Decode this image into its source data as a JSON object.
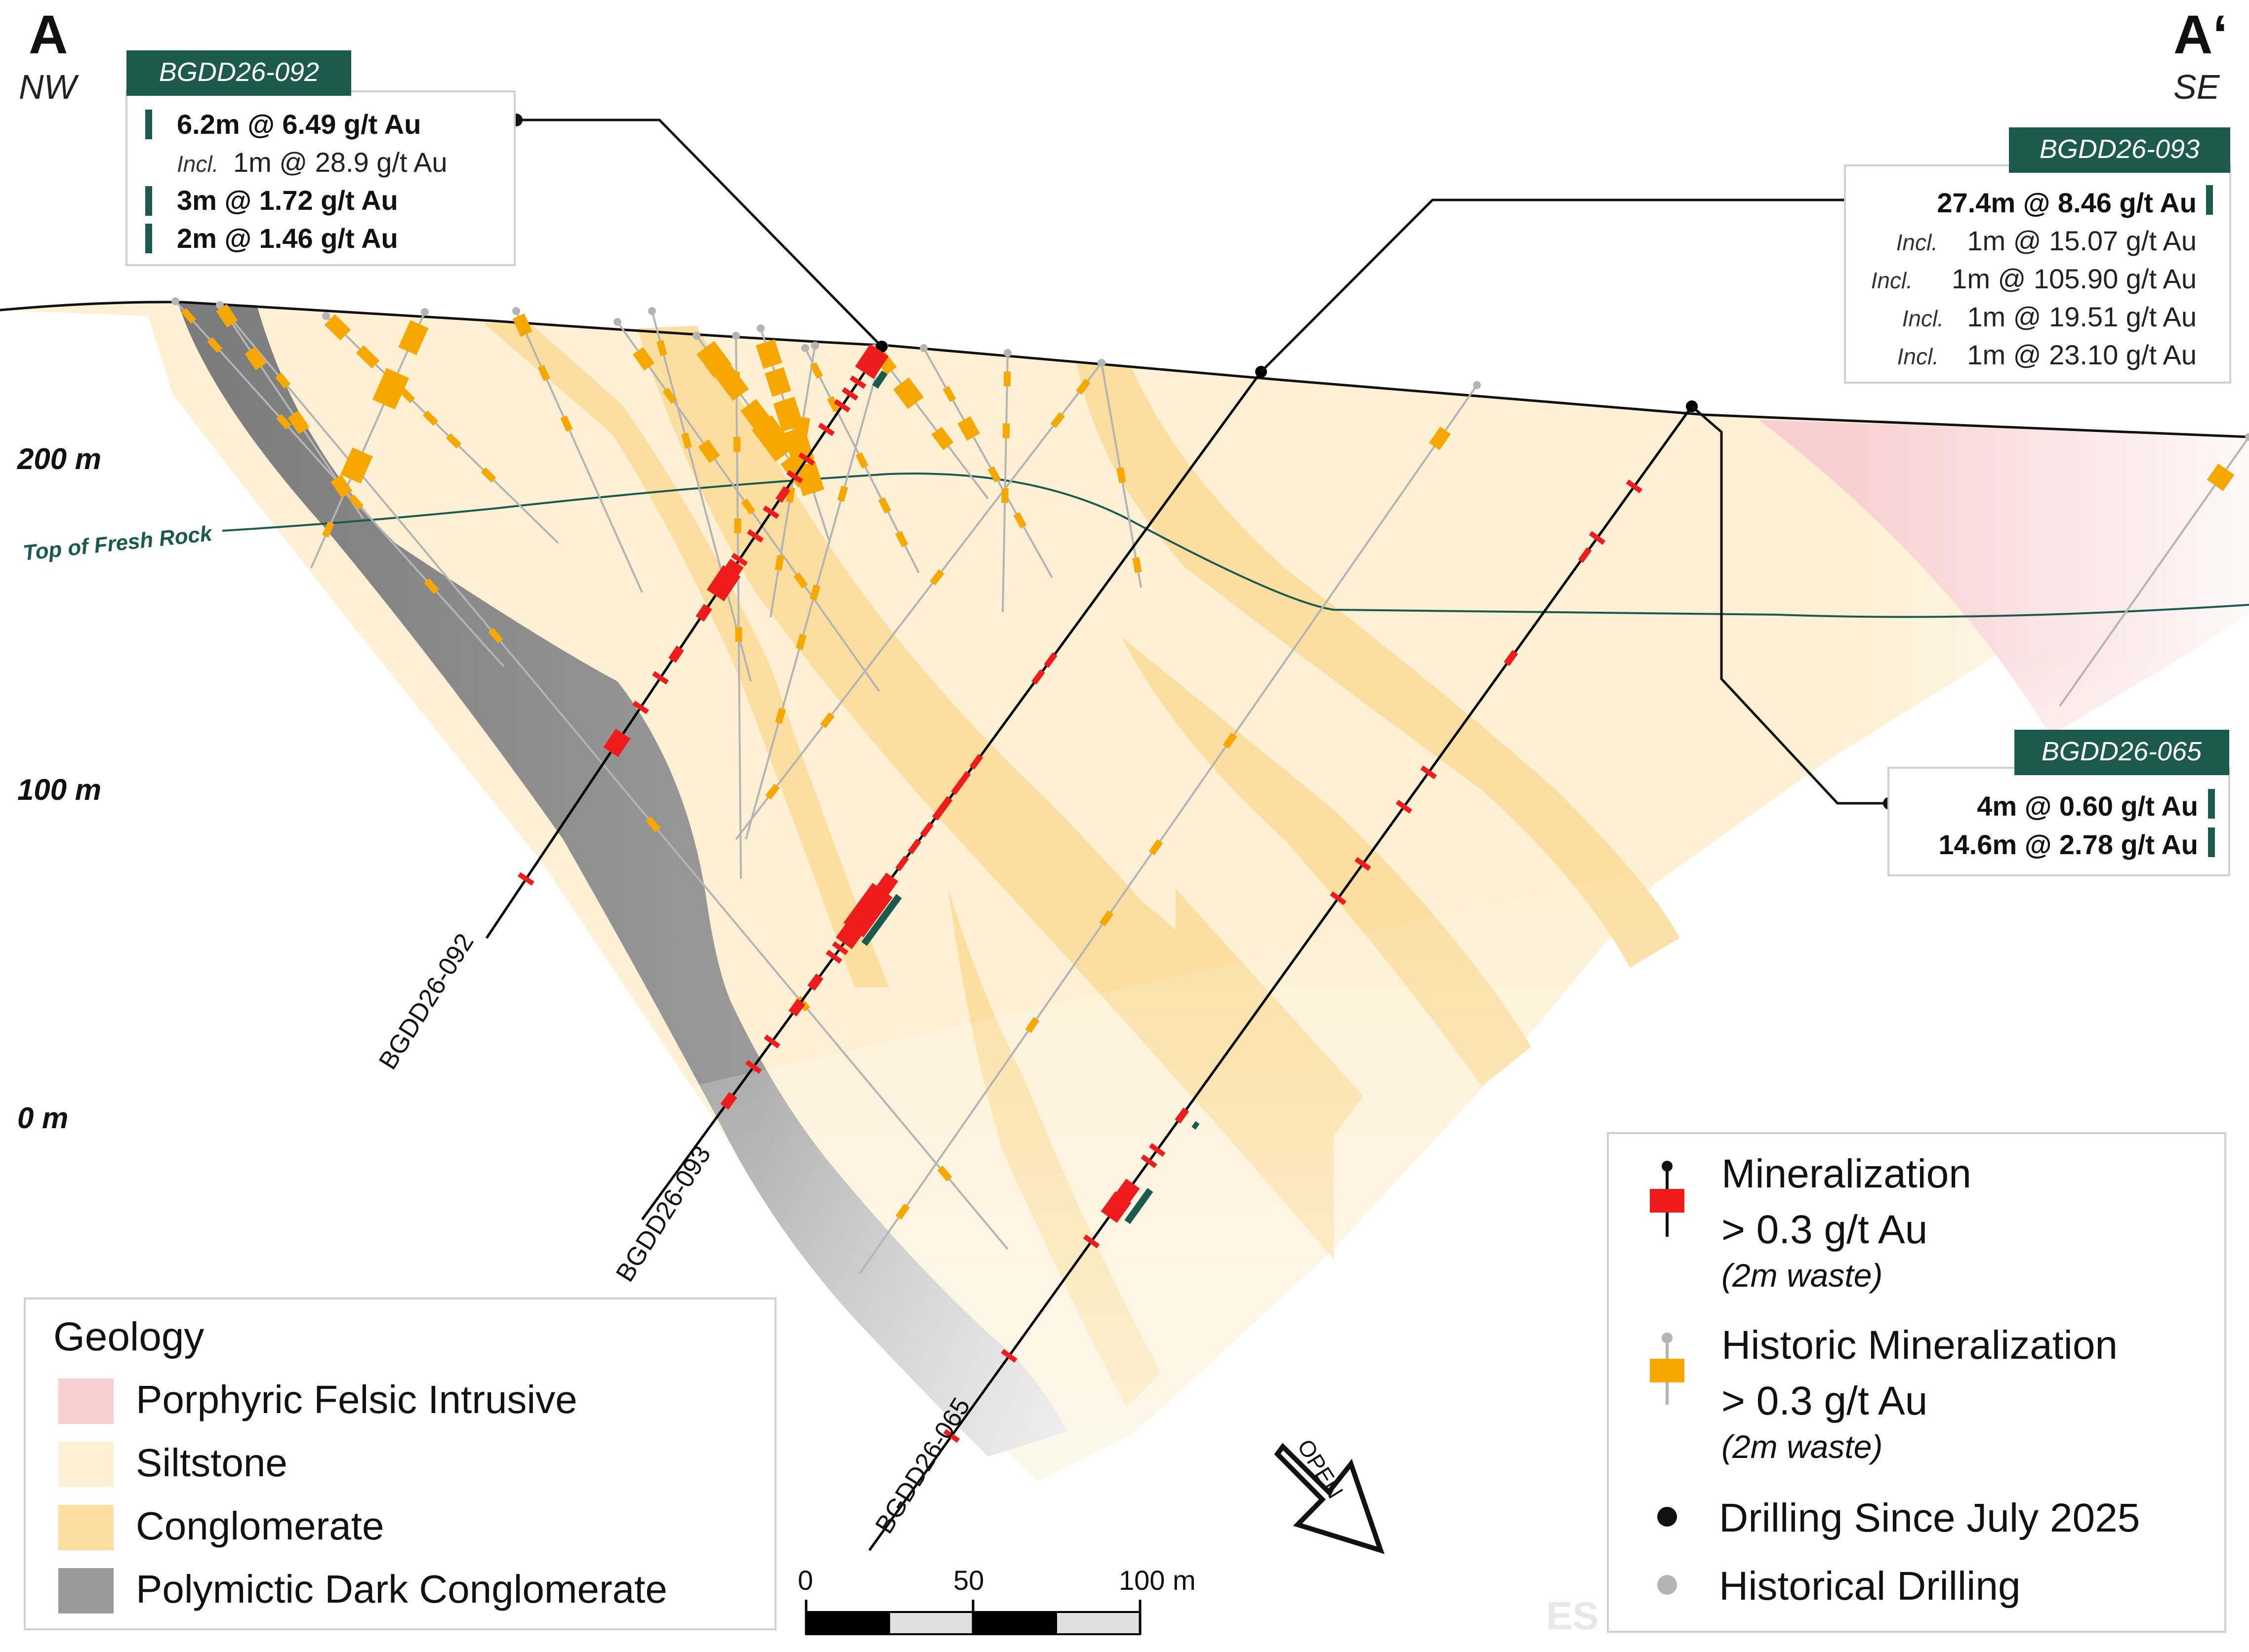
{
  "section": {
    "start_label": "A",
    "start_dir": "NW",
    "end_label": "A‘",
    "end_dir": "SE"
  },
  "elevations": [
    "200 m",
    "100 m",
    "0 m"
  ],
  "fresh_rock_label": "Top of Fresh Rock",
  "holes": [
    {
      "id": "BGDD26-092",
      "intercepts": [
        {
          "kind": "main",
          "text": "6.2m @ 6.49 g/t Au"
        },
        {
          "kind": "incl",
          "prefix": "Incl.",
          "text": "1m @ 28.9 g/t Au"
        },
        {
          "kind": "main",
          "text": "3m @ 1.72 g/t Au"
        },
        {
          "kind": "main",
          "text": "2m @ 1.46 g/t Au"
        }
      ]
    },
    {
      "id": "BGDD26-093",
      "intercepts": [
        {
          "kind": "main",
          "text": "27.4m @ 8.46 g/t Au"
        },
        {
          "kind": "incl",
          "prefix": "Incl.",
          "text": "1m @ 15.07 g/t Au"
        },
        {
          "kind": "incl",
          "prefix": "Incl.",
          "text": "1m @ 105.90 g/t Au"
        },
        {
          "kind": "incl",
          "prefix": "Incl.",
          "text": "1m @ 19.51 g/t Au"
        },
        {
          "kind": "incl",
          "prefix": "Incl.",
          "text": "1m @ 23.10 g/t Au"
        }
      ]
    },
    {
      "id": "BGDD26-065",
      "intercepts": [
        {
          "kind": "main",
          "text": "4m @ 0.60 g/t Au"
        },
        {
          "kind": "main",
          "text": "14.6m @ 2.78 g/t Au"
        }
      ]
    }
  ],
  "hole_trace_labels": [
    "BGDD26-092",
    "BGDD26-093",
    "BGDD26-065"
  ],
  "geology_legend": {
    "title": "Geology",
    "items": [
      {
        "label": "Porphyric Felsic Intrusive",
        "color": "#f8d0d2"
      },
      {
        "label": "Siltstone",
        "color": "#fdf0d4"
      },
      {
        "label": "Conglomerate",
        "color": "#fbdea0"
      },
      {
        "label": "Polymictic Dark Conglomerate",
        "color": "#999999"
      }
    ]
  },
  "scale_bar": {
    "ticks": [
      "0",
      "50",
      "100 m"
    ]
  },
  "open_label": "OPEN",
  "mineral_legend": {
    "mineralization": {
      "line1": "Mineralization",
      "line2": "> 0.3 g/t Au",
      "line3": "(2m waste)"
    },
    "historic": {
      "line1": "Historic Mineralization",
      "line2": "> 0.3 g/t Au",
      "line3": "(2m waste)"
    },
    "drilling_new": "Drilling Since July 2025",
    "drilling_hist": "Historical Drilling"
  },
  "watermark": "ES",
  "colors": {
    "brand": "#1c5a4e",
    "new_mineralization": "#ee1c1c",
    "historic_mineralization": "#f7a800",
    "new_drill": "#000000",
    "historic_drill": "#b4b4b4"
  }
}
